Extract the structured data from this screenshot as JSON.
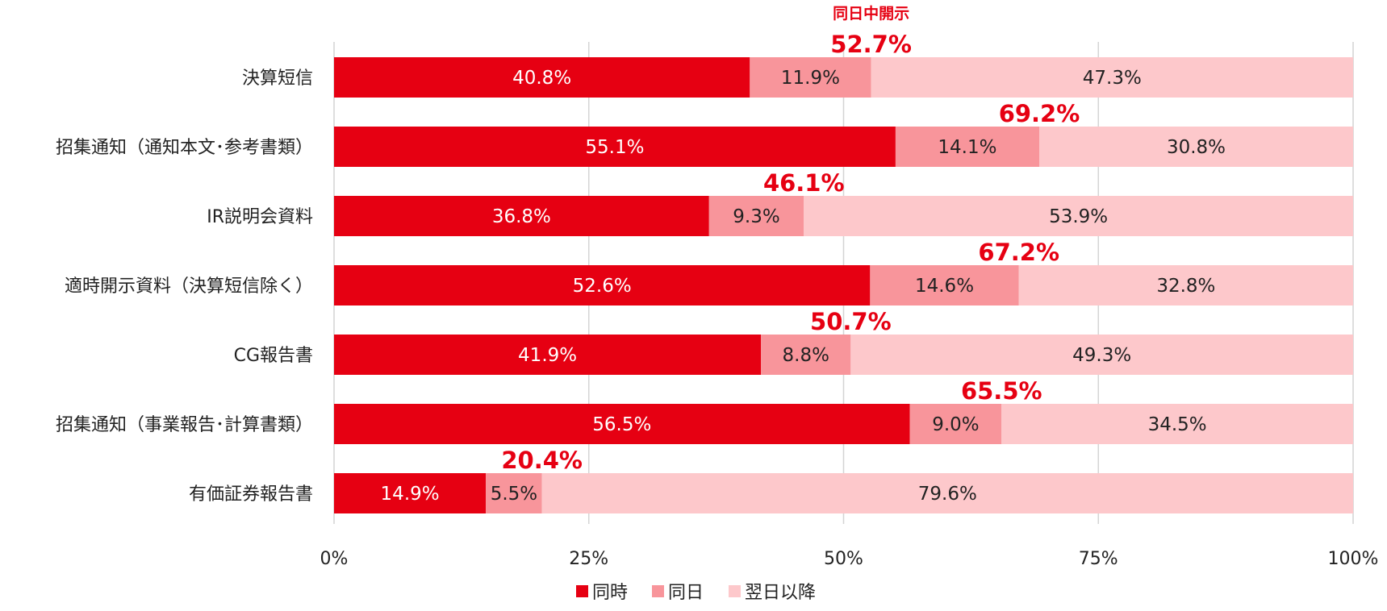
{
  "chart_data": {
    "type": "bar",
    "orientation": "horizontal",
    "stacked": true,
    "categories": [
      "決算短信",
      "招集通知（通知本文･参考書類）",
      "IR説明会資料",
      "適時開示資料（決算短信除く）",
      "CG報告書",
      "招集通知（事業報告･計算書類）",
      "有価証券報告書"
    ],
    "series": [
      {
        "name": "同時",
        "color": "#e60012",
        "label_color": "#ffffff",
        "values": [
          40.8,
          55.1,
          36.8,
          52.6,
          41.9,
          56.5,
          14.9
        ],
        "labels": [
          "40.8%",
          "55.1%",
          "36.8%",
          "52.6%",
          "41.9%",
          "56.5%",
          "14.9%"
        ]
      },
      {
        "name": "同日",
        "color": "#f8959b",
        "label_color": "#222222",
        "values": [
          11.9,
          14.1,
          9.3,
          14.6,
          8.8,
          9.0,
          5.5
        ],
        "labels": [
          "11.9%",
          "14.1%",
          "9.3%",
          "14.6%",
          "8.8%",
          "9.0%",
          "5.5%"
        ]
      },
      {
        "name": "翌日以降",
        "color": "#fdc8cb",
        "label_color": "#222222",
        "values": [
          47.3,
          30.8,
          53.9,
          32.8,
          49.3,
          34.5,
          79.6
        ],
        "labels": [
          "47.3%",
          "30.8%",
          "53.9%",
          "32.8%",
          "49.3%",
          "34.5%",
          "79.6%"
        ]
      }
    ],
    "totals": {
      "values": [
        52.7,
        69.2,
        46.1,
        67.2,
        50.7,
        65.5,
        20.4
      ],
      "labels": [
        "52.7%",
        "69.2%",
        "46.1%",
        "67.2%",
        "50.7%",
        "65.5%",
        "20.4%"
      ],
      "color": "#e60012"
    },
    "annotation": "同日中開示",
    "x_ticks": [
      0,
      25,
      50,
      75,
      100
    ],
    "x_tick_labels": [
      "0%",
      "25%",
      "50%",
      "75%",
      "100%"
    ],
    "xlim": [
      0,
      100
    ],
    "grid": true,
    "legend_position": "bottom",
    "title": "",
    "xlabel": "",
    "ylabel": ""
  }
}
